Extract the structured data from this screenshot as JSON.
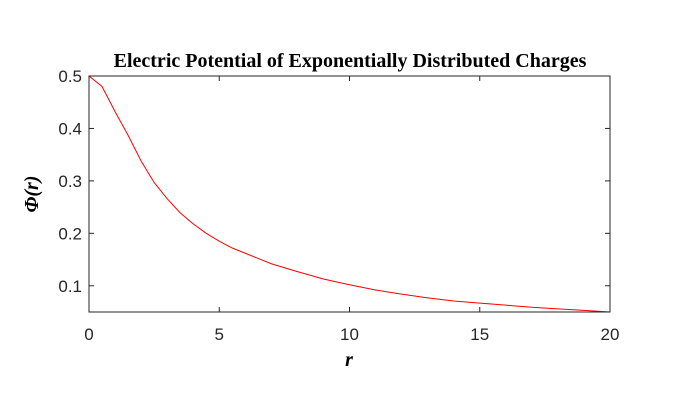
{
  "chart_data": {
    "type": "line",
    "title": "Electric Potential of Exponentially Distributed Charges",
    "xlabel": "r",
    "ylabel": "Φ(r)",
    "xlim": [
      0,
      20
    ],
    "ylim": [
      0.05,
      0.5
    ],
    "xticks": [
      0,
      5,
      10,
      15,
      20
    ],
    "yticks": [
      0.1,
      0.2,
      0.3,
      0.4,
      0.5
    ],
    "grid": false,
    "box": true,
    "series": [
      {
        "color": "#ff0000",
        "x": [
          0,
          0.5,
          1,
          1.5,
          2,
          2.5,
          3,
          3.5,
          4,
          4.5,
          5,
          5.5,
          6,
          7,
          8,
          9,
          10,
          11,
          12,
          13,
          14,
          15,
          16,
          17,
          18,
          19,
          20
        ],
        "y": [
          0.5,
          0.48,
          0.432,
          0.387,
          0.338,
          0.297,
          0.266,
          0.239,
          0.218,
          0.2,
          0.185,
          0.172,
          0.162,
          0.142,
          0.127,
          0.113,
          0.102,
          0.092,
          0.084,
          0.077,
          0.071,
          0.067,
          0.063,
          0.059,
          0.056,
          0.053,
          0.05
        ]
      }
    ]
  }
}
